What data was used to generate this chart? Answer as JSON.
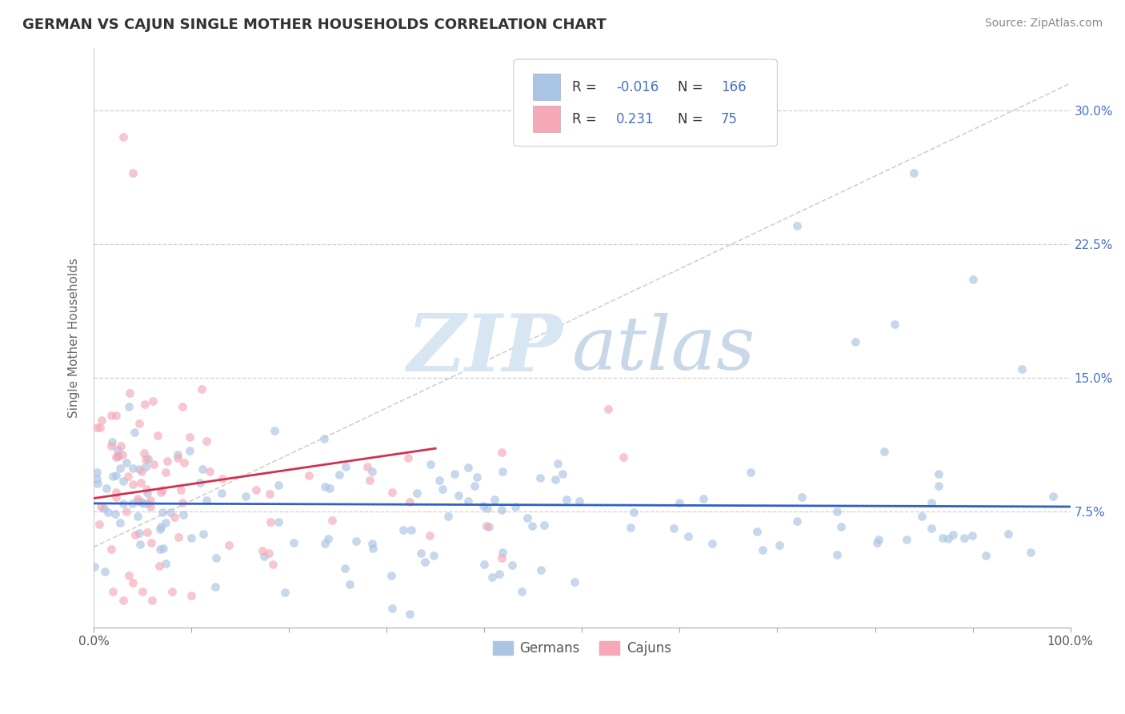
{
  "title": "GERMAN VS CAJUN SINGLE MOTHER HOUSEHOLDS CORRELATION CHART",
  "source": "Source: ZipAtlas.com",
  "ylabel": "Single Mother Households",
  "legend_label1": "Germans",
  "legend_label2": "Cajuns",
  "r_german": -0.016,
  "n_german": 166,
  "r_cajun": 0.231,
  "n_cajun": 75,
  "german_color": "#aac4e4",
  "cajun_color": "#f4a8b8",
  "german_line_color": "#3060c0",
  "cajun_line_color": "#d03050",
  "ytick_labels": [
    "7.5%",
    "15.0%",
    "22.5%",
    "30.0%"
  ],
  "ytick_values": [
    0.075,
    0.15,
    0.225,
    0.3
  ],
  "xlim": [
    0.0,
    1.0
  ],
  "ylim": [
    0.01,
    0.335
  ],
  "background_color": "#ffffff"
}
